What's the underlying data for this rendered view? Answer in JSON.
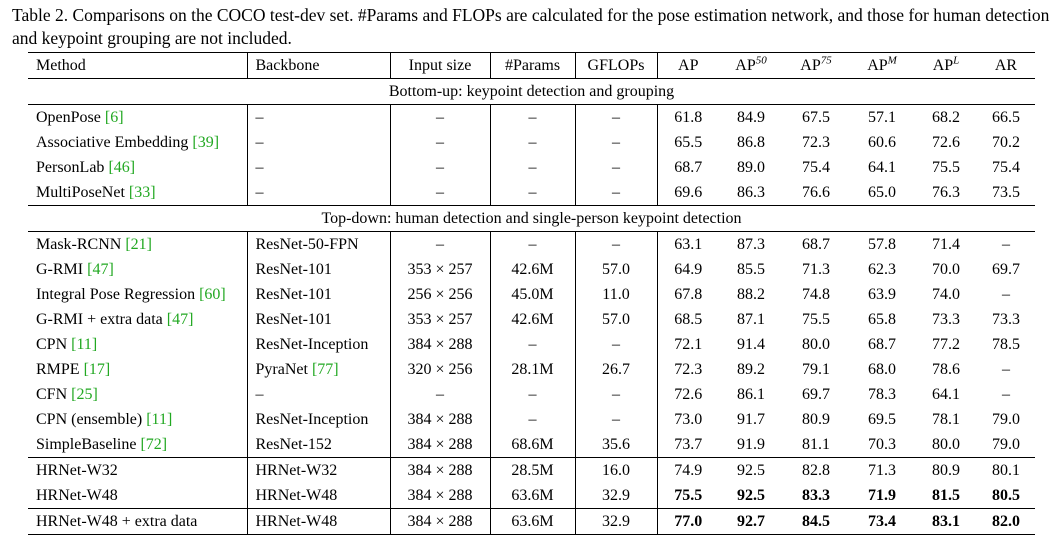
{
  "caption": "Table 2. Comparisons on the COCO test-dev set. #Params and FLOPs are calculated for the pose estimation network, and those for human detection and keypoint grouping are not included.",
  "table": {
    "columns": [
      "Method",
      "Backbone",
      "Input size",
      "#Params",
      "GFLOPs",
      {
        "label": "AP"
      },
      {
        "label": "AP",
        "sup": "50"
      },
      {
        "label": "AP",
        "sup": "75"
      },
      {
        "label": "AP",
        "sup": "M"
      },
      {
        "label": "AP",
        "sup": "L"
      },
      {
        "label": "AR"
      }
    ],
    "groups": [
      {
        "title": "Bottom-up: keypoint detection and grouping",
        "rows": [
          {
            "method": "OpenPose",
            "method_cite": "[6]",
            "backbone": "–",
            "input": "–",
            "params": "–",
            "gflops": "–",
            "scores": [
              "61.8",
              "84.9",
              "67.5",
              "57.1",
              "68.2",
              "66.5"
            ]
          },
          {
            "method": "Associative Embedding",
            "method_cite": "[39]",
            "backbone": "–",
            "input": "–",
            "params": "–",
            "gflops": "–",
            "scores": [
              "65.5",
              "86.8",
              "72.3",
              "60.6",
              "72.6",
              "70.2"
            ]
          },
          {
            "method": "PersonLab",
            "method_cite": "[46]",
            "backbone": "–",
            "input": "–",
            "params": "–",
            "gflops": "–",
            "scores": [
              "68.7",
              "89.0",
              "75.4",
              "64.1",
              "75.5",
              "75.4"
            ]
          },
          {
            "method": "MultiPoseNet",
            "method_cite": "[33]",
            "backbone": "–",
            "input": "–",
            "params": "–",
            "gflops": "–",
            "scores": [
              "69.6",
              "86.3",
              "76.6",
              "65.0",
              "76.3",
              "73.5"
            ]
          }
        ]
      },
      {
        "title": "Top-down: human detection and single-person keypoint detection",
        "rows": [
          {
            "method": "Mask-RCNN",
            "method_cite": "[21]",
            "backbone": "ResNet-50-FPN",
            "input": "–",
            "params": "–",
            "gflops": "–",
            "scores": [
              "63.1",
              "87.3",
              "68.7",
              "57.8",
              "71.4",
              "–"
            ]
          },
          {
            "method": "G-RMI",
            "method_cite": "[47]",
            "backbone": "ResNet-101",
            "input": "353 × 257",
            "params": "42.6M",
            "gflops": "57.0",
            "scores": [
              "64.9",
              "85.5",
              "71.3",
              "62.3",
              "70.0",
              "69.7"
            ]
          },
          {
            "method": "Integral Pose Regression",
            "method_cite": "[60]",
            "backbone": "ResNet-101",
            "input": "256 × 256",
            "params": "45.0M",
            "gflops": "11.0",
            "scores": [
              "67.8",
              "88.2",
              "74.8",
              "63.9",
              "74.0",
              "–"
            ]
          },
          {
            "method": "G-RMI + extra data",
            "method_cite": "[47]",
            "backbone": "ResNet-101",
            "input": "353 × 257",
            "params": "42.6M",
            "gflops": "57.0",
            "scores": [
              "68.5",
              "87.1",
              "75.5",
              "65.8",
              "73.3",
              "73.3"
            ]
          },
          {
            "method": "CPN",
            "method_cite": "[11]",
            "backbone": "ResNet-Inception",
            "input": "384 × 288",
            "params": "–",
            "gflops": "–",
            "scores": [
              "72.1",
              "91.4",
              "80.0",
              "68.7",
              "77.2",
              "78.5"
            ]
          },
          {
            "method": "RMPE",
            "method_cite": "[17]",
            "backbone": "PyraNet",
            "backbone_cite": "[77]",
            "input": "320 × 256",
            "params": "28.1M",
            "gflops": "26.7",
            "scores": [
              "72.3",
              "89.2",
              "79.1",
              "68.0",
              "78.6",
              "–"
            ]
          },
          {
            "method": "CFN",
            "method_cite": "[25]",
            "backbone": "–",
            "input": "–",
            "params": "–",
            "gflops": "–",
            "scores": [
              "72.6",
              "86.1",
              "69.7",
              "78.3",
              "64.1",
              "–"
            ]
          },
          {
            "method": "CPN (ensemble)",
            "method_cite": "[11]",
            "backbone": "ResNet-Inception",
            "input": "384 × 288",
            "params": "–",
            "gflops": "–",
            "scores": [
              "73.0",
              "91.7",
              "80.9",
              "69.5",
              "78.1",
              "79.0"
            ]
          },
          {
            "method": "SimpleBaseline",
            "method_cite": "[72]",
            "backbone": "ResNet-152",
            "input": "384 × 288",
            "params": "68.6M",
            "gflops": "35.6",
            "scores": [
              "73.7",
              "91.9",
              "81.1",
              "70.3",
              "80.0",
              "79.0"
            ]
          }
        ]
      },
      {
        "rows": [
          {
            "method": "HRNet-W32",
            "backbone": "HRNet-W32",
            "input": "384 × 288",
            "params": "28.5M",
            "gflops": "16.0",
            "scores": [
              "74.9",
              "92.5",
              "82.8",
              "71.3",
              "80.9",
              "80.1"
            ]
          },
          {
            "method": "HRNet-W48",
            "backbone": "HRNet-W48",
            "input": "384 × 288",
            "params": "63.6M",
            "gflops": "32.9",
            "scores": [
              "75.5",
              "92.5",
              "83.3",
              "71.9",
              "81.5",
              "80.5"
            ],
            "bold": true
          }
        ]
      },
      {
        "rows": [
          {
            "method": "HRNet-W48 + extra data",
            "backbone": "HRNet-W48",
            "input": "384 × 288",
            "params": "63.6M",
            "gflops": "32.9",
            "scores": [
              "77.0",
              "92.7",
              "84.5",
              "73.4",
              "83.1",
              "82.0"
            ],
            "bold": true
          }
        ]
      }
    ]
  }
}
